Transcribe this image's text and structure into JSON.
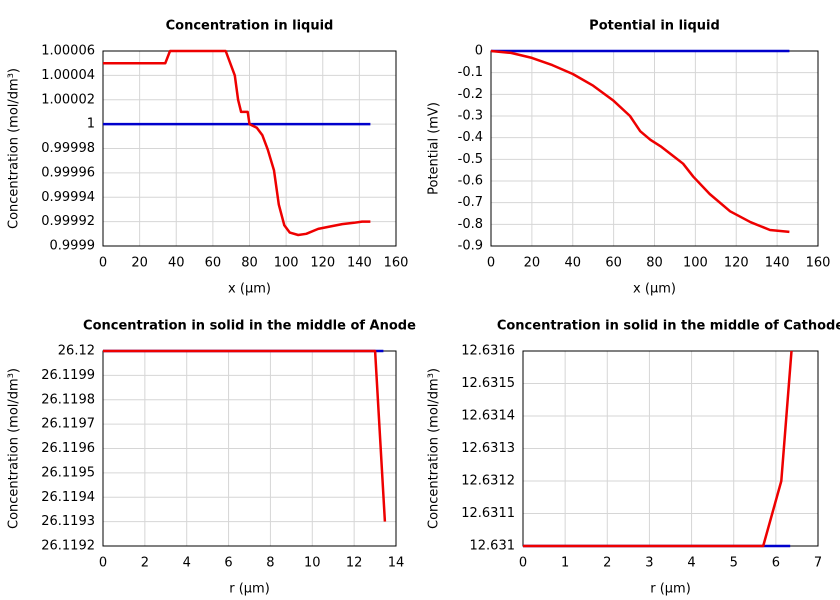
{
  "chart_data": [
    {
      "type": "line",
      "title": "Concentration in liquid",
      "xlabel": "x (µm)",
      "ylabel": "Concentration (mol/dm³)",
      "xlim": [
        0,
        160
      ],
      "xticks": [
        0,
        20,
        40,
        60,
        80,
        100,
        120,
        140,
        160
      ],
      "ylim": [
        0.9999,
        1.00006
      ],
      "yticks": [
        0.9999,
        0.99992,
        0.99994,
        0.99996,
        0.99998,
        1,
        1.00002,
        1.00004,
        1.00006
      ],
      "grid": true,
      "series": [
        {
          "color": "#0000cc",
          "x": [
            0,
            146
          ],
          "values": [
            1,
            1
          ]
        },
        {
          "color": "#ee0000",
          "x": [
            0,
            34,
            36.6,
            67,
            72,
            73.8,
            75.4,
            79,
            80,
            84,
            87,
            90,
            93.4,
            96,
            99,
            102,
            106.6,
            111,
            117.5,
            124,
            130.6,
            137,
            141.5,
            146
          ],
          "values": [
            1.00005,
            1.00005,
            1.00006,
            1.00006,
            1.00004,
            1.00002,
            1.00001,
            1.00001,
            1,
            0.999997,
            0.999991,
            0.999979,
            0.999962,
            0.999934,
            0.999917,
            0.999911,
            0.999909,
            0.99991,
            0.999914,
            0.999916,
            0.999918,
            0.999919,
            0.99992,
            0.99992
          ]
        }
      ]
    },
    {
      "type": "line",
      "title": "Potential in liquid",
      "xlabel": "x (µm)",
      "ylabel": "Potential (mV)",
      "xlim": [
        0,
        160
      ],
      "xticks": [
        0,
        20,
        40,
        60,
        80,
        100,
        120,
        140,
        160
      ],
      "ylim": [
        -0.9,
        0
      ],
      "yticks": [
        0,
        -0.1,
        -0.2,
        -0.3,
        -0.4,
        -0.5,
        -0.6,
        -0.7,
        -0.8,
        -0.9
      ],
      "grid": true,
      "series": [
        {
          "color": "#0000cc",
          "x": [
            0,
            146
          ],
          "values": [
            0,
            0
          ]
        },
        {
          "color": "#ee0000",
          "x": [
            0,
            9.8,
            20,
            30,
            40,
            50,
            60,
            68,
            73,
            78,
            83,
            88.5,
            94,
            99,
            107,
            117,
            127,
            136.5,
            146
          ],
          "values": [
            0,
            -0.009,
            -0.032,
            -0.065,
            -0.106,
            -0.16,
            -0.23,
            -0.3,
            -0.37,
            -0.41,
            -0.44,
            -0.48,
            -0.52,
            -0.58,
            -0.66,
            -0.74,
            -0.79,
            -0.826,
            -0.835
          ]
        }
      ]
    },
    {
      "type": "line",
      "title": "Concentration in solid in the middle of Anode",
      "xlabel": "r (µm)",
      "ylabel": "Concentration (mol/dm³)",
      "xlim": [
        0,
        14
      ],
      "xticks": [
        0,
        2,
        4,
        6,
        8,
        10,
        12,
        14
      ],
      "ylim": [
        26.1192,
        26.12
      ],
      "yticks": [
        26.12,
        26.1199,
        26.1198,
        26.1197,
        26.1196,
        26.1195,
        26.1194,
        26.1193,
        26.1192
      ],
      "grid": true,
      "series": [
        {
          "color": "#0000cc",
          "x": [
            0,
            13.4
          ],
          "values": [
            26.12,
            26.12
          ]
        },
        {
          "color": "#ee0000",
          "x": [
            0,
            13,
            13.47
          ],
          "values": [
            26.12,
            26.12,
            26.1193
          ]
        }
      ]
    },
    {
      "type": "line",
      "title": "Concentration in solid in the middle of Cathode",
      "xlabel": "r (µm)",
      "ylabel": "Concentration (mol/dm³)",
      "xlim": [
        0,
        7
      ],
      "xticks": [
        0,
        1,
        2,
        3,
        4,
        5,
        6,
        7
      ],
      "ylim": [
        12.631,
        12.6316
      ],
      "yticks": [
        12.6316,
        12.6315,
        12.6314,
        12.6313,
        12.6312,
        12.6311,
        12.631
      ],
      "grid": true,
      "series": [
        {
          "color": "#0000cc",
          "x": [
            0,
            6.34
          ],
          "values": [
            12.631,
            12.631
          ]
        },
        {
          "color": "#ee0000",
          "x": [
            0,
            5.7,
            6.13,
            6.37
          ],
          "values": [
            12.631,
            12.631,
            12.6312,
            12.6316
          ]
        }
      ]
    }
  ]
}
